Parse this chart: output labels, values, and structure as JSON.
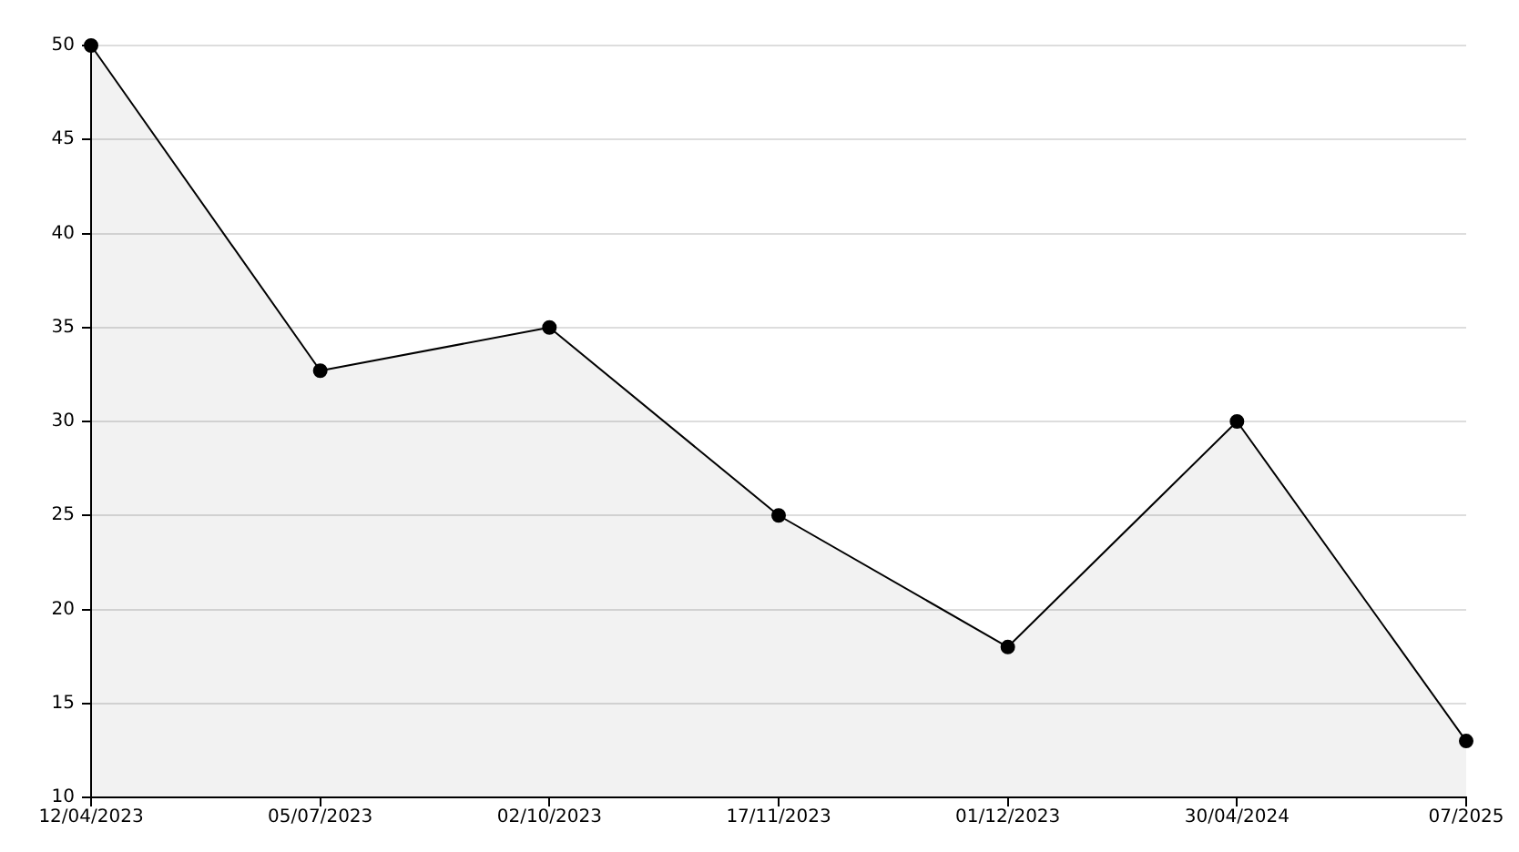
{
  "chart_data": {
    "type": "area",
    "categories": [
      "12/04/2023",
      "05/07/2023",
      "02/10/2023",
      "17/11/2023",
      "01/12/2023",
      "30/04/2024",
      "07/2025"
    ],
    "series": [
      {
        "color": "#000000",
        "values": [
          50,
          32.7,
          35,
          25,
          18,
          30,
          13
        ]
      }
    ],
    "ylim": [
      10,
      50
    ],
    "yticks": [
      10,
      15,
      20,
      25,
      30,
      35,
      40,
      45,
      50
    ],
    "grid": "y",
    "legend": false,
    "marker": "circle",
    "line_style": "solid"
  }
}
